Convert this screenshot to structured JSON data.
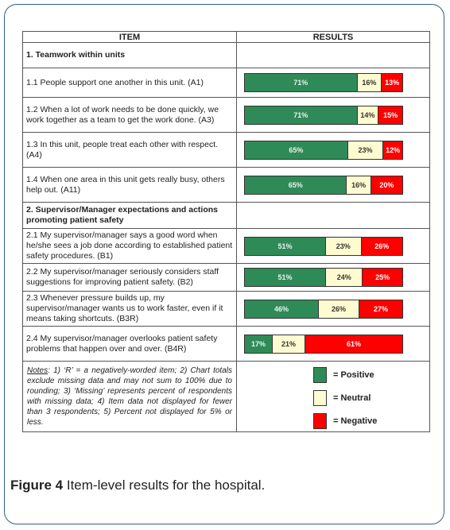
{
  "header": {
    "item": "ITEM",
    "results": "RESULTS"
  },
  "chart_data": {
    "type": "bar",
    "stacked": true,
    "orientation": "horizontal",
    "series_names": [
      "Positive",
      "Neutral",
      "Negative"
    ],
    "colors": {
      "positive": "#2e8b57",
      "neutral": "#fffbd0",
      "negative": "#ff0000"
    },
    "sections": [
      {
        "title": "1.  Teamwork within units",
        "items": [
          {
            "label": "1.1 People support one another in this unit. (A1)",
            "values": [
              71,
              16,
              13
            ]
          },
          {
            "label": "1.2 When a lot of work needs to be done quickly, we work together as a team to get the work done. (A3)",
            "values": [
              71,
              14,
              15
            ]
          },
          {
            "label": "1.3 In this unit, people treat each other with respect. (A4)",
            "values": [
              65,
              23,
              12
            ]
          },
          {
            "label": "1.4 When one area in this unit gets really busy, others help out. (A11)",
            "values": [
              65,
              16,
              20
            ]
          }
        ]
      },
      {
        "title": "2.  Supervisor/Manager expectations and actions promoting patient safety",
        "items": [
          {
            "label": "2.1 My supervisor/manager says a good word when he/she sees a job done according to established patient safety procedures. (B1)",
            "values": [
              51,
              23,
              26
            ]
          },
          {
            "label": "2.2 My supervisor/manager seriously considers staff suggestions for improving patient safety. (B2)",
            "values": [
              51,
              24,
              25
            ]
          },
          {
            "label": "2.3 Whenever pressure builds up, my supervisor/manager wants us to work faster, even if it means taking shortcuts. (B3R)",
            "values": [
              46,
              26,
              27
            ]
          },
          {
            "label": "2.4 My supervisor/manager overlooks patient safety problems that happen over and over. (B4R)",
            "values": [
              17,
              21,
              61
            ]
          }
        ]
      }
    ]
  },
  "notes": {
    "prefix": "Notes",
    "text": ": 1) ‘R’ = a negatively-worded item; 2) Chart totals exclude missing data and may not sum to 100% due to rounding; 3) ‘Missing’ represents percent of respondents with missing data; 4) Item data not displayed for fewer than 3 respondents; 5) Percent not displayed for 5% or less."
  },
  "legend": {
    "positive": "= Positive",
    "neutral": "= Neutral",
    "negative": "= Negative"
  },
  "caption": {
    "figure": "Figure 4",
    "text": " Item-level results for the hospital."
  }
}
